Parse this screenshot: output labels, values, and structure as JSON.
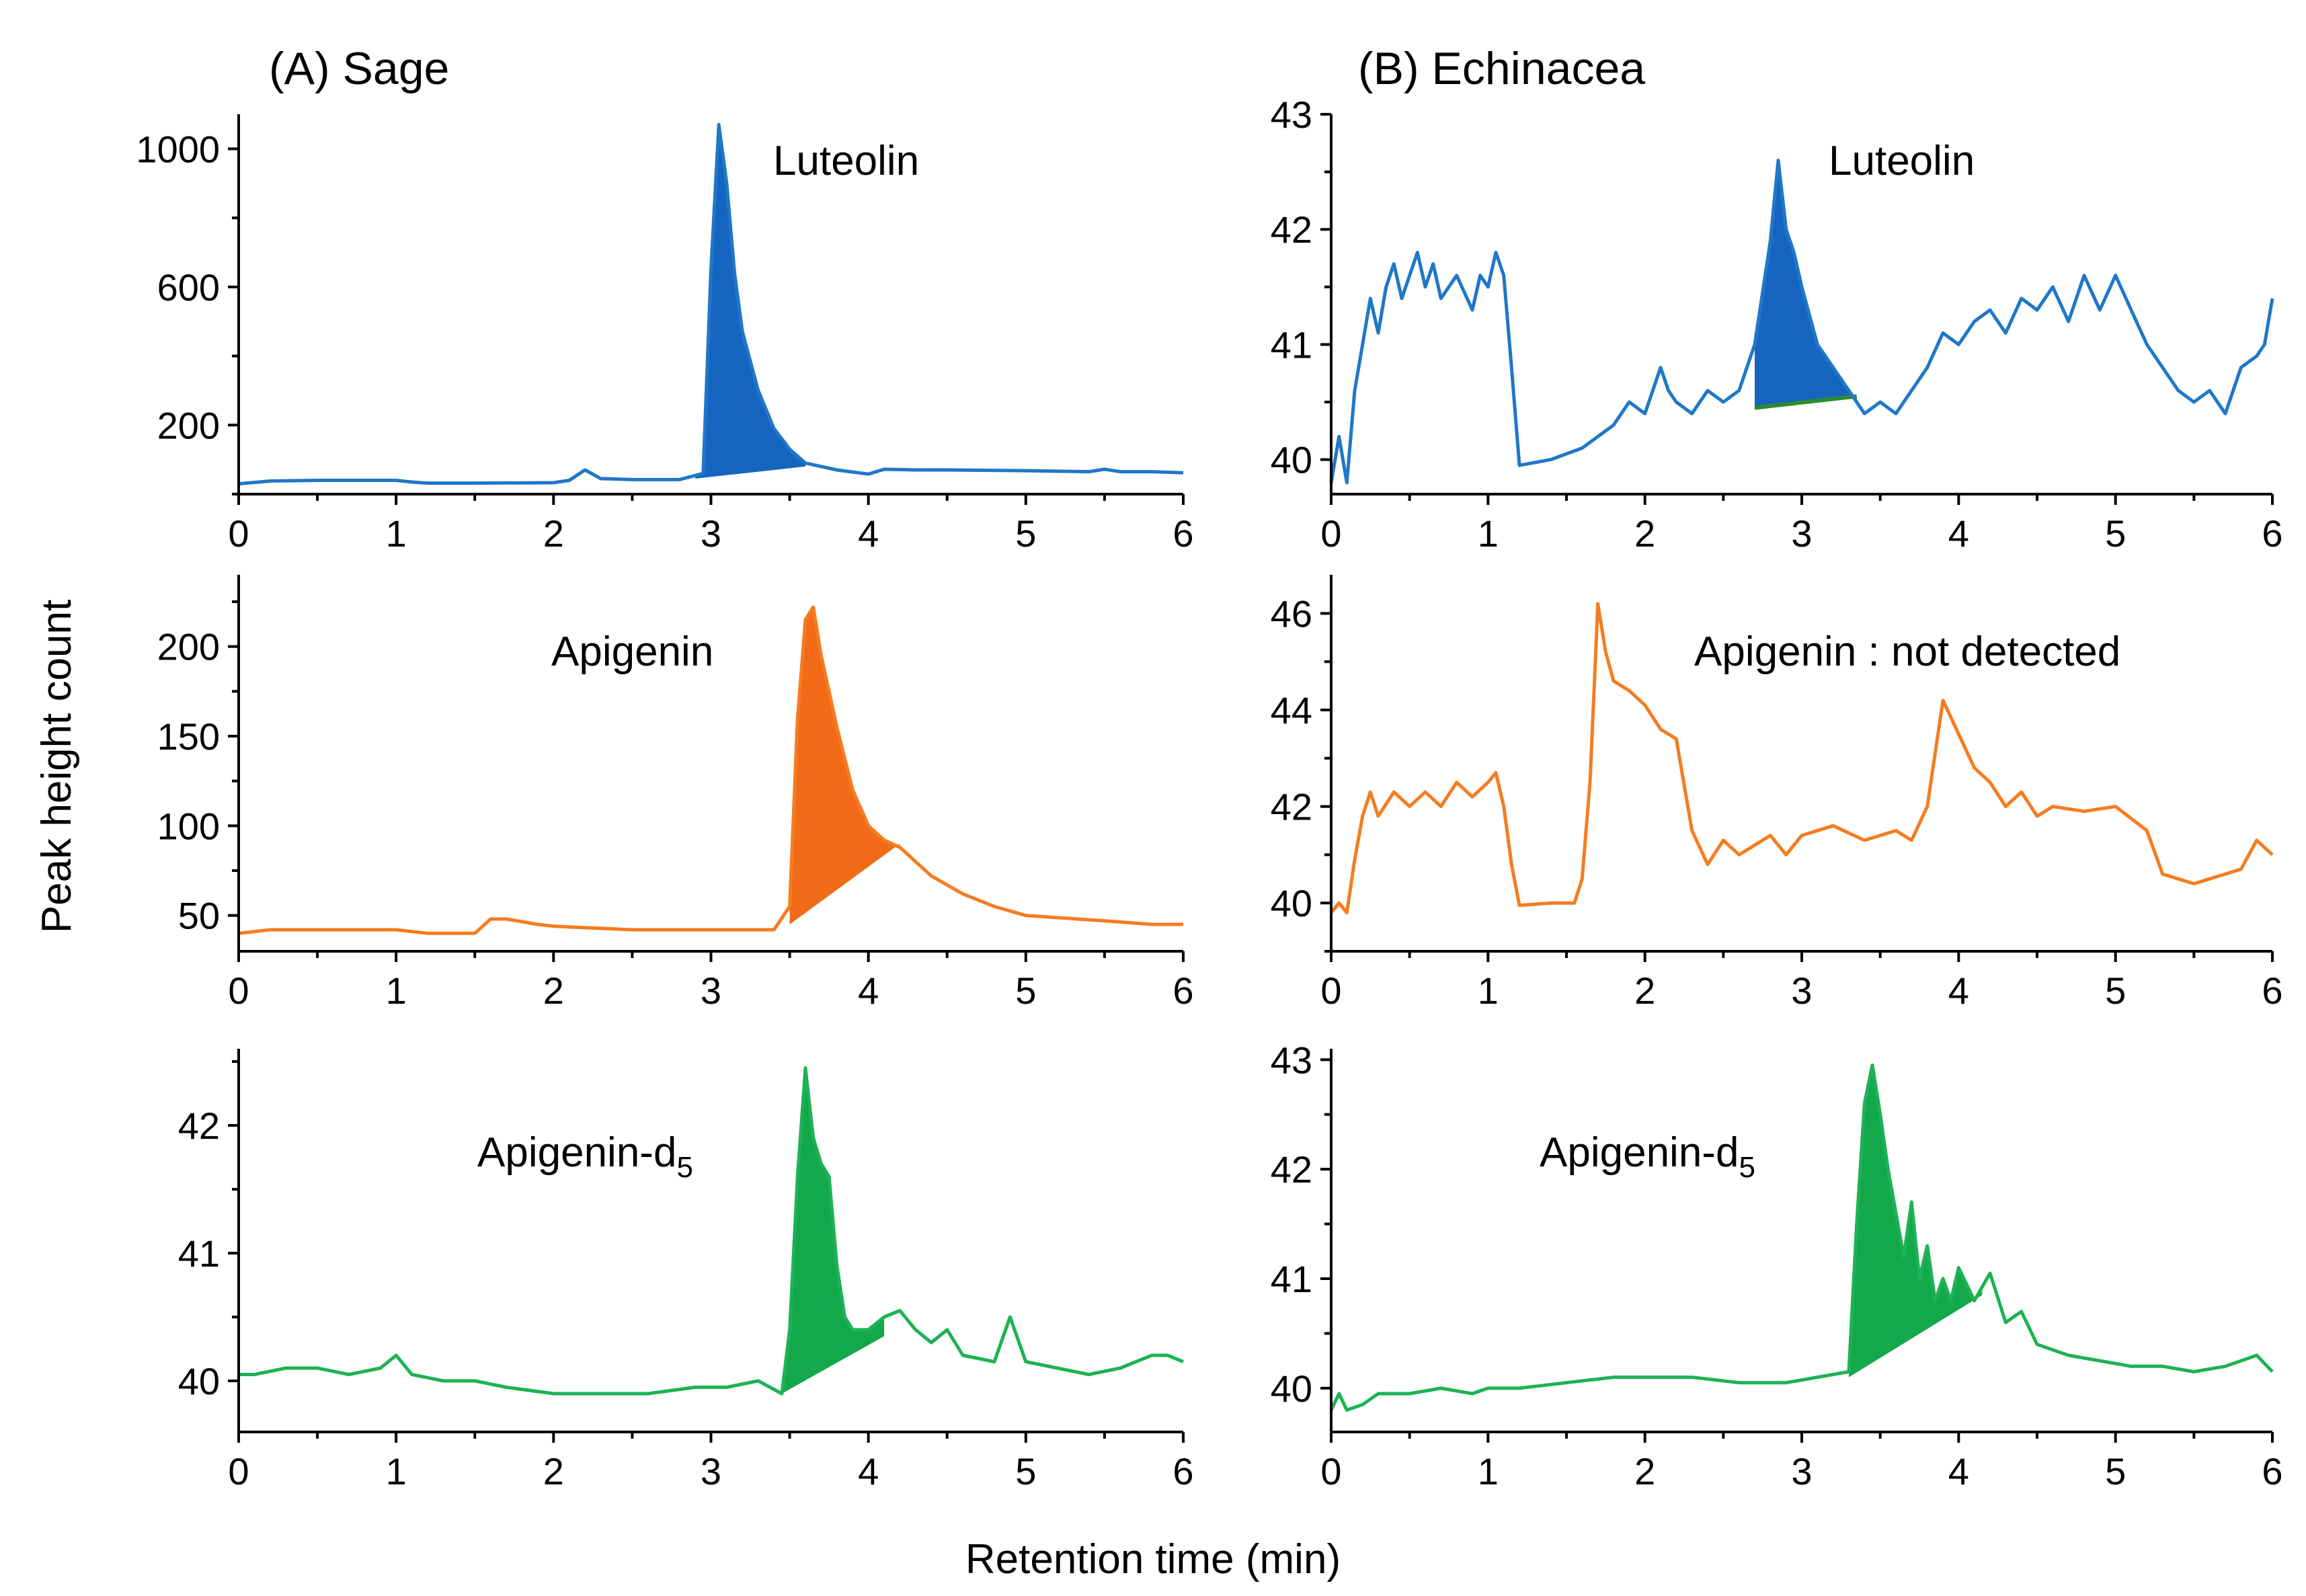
{
  "figure": {
    "x_axis_title": "Retention time (min)",
    "y_axis_title": "Peak height count"
  },
  "chart_data": [
    {
      "id": "sage-luteolin",
      "type": "line",
      "column_title": "(A) Sage",
      "label": "Luteolin",
      "color": "#1f77c8",
      "fill_color": "#1565c0",
      "xlim": [
        0,
        6
      ],
      "x_ticks": [
        0,
        1,
        2,
        3,
        4,
        5,
        6
      ],
      "ylim": [
        0,
        1100
      ],
      "y_ticks": [
        200,
        600,
        1000
      ],
      "peak_shade": {
        "start": 2.9,
        "end": 3.6,
        "baseline": [
          45,
          80
        ]
      },
      "x": [
        0,
        0.2,
        0.5,
        1.0,
        1.1,
        1.2,
        1.5,
        2.0,
        2.1,
        2.2,
        2.3,
        2.5,
        2.8,
        2.95,
        3.0,
        3.05,
        3.1,
        3.15,
        3.2,
        3.3,
        3.4,
        3.5,
        3.6,
        3.8,
        4.0,
        4.1,
        4.3,
        4.5,
        5.0,
        5.4,
        5.5,
        5.6,
        5.8,
        6.0
      ],
      "y": [
        30,
        38,
        40,
        40,
        35,
        32,
        32,
        33,
        40,
        70,
        45,
        42,
        42,
        60,
        650,
        1070,
        900,
        640,
        470,
        300,
        190,
        130,
        90,
        70,
        58,
        72,
        70,
        70,
        68,
        65,
        72,
        65,
        65,
        62
      ]
    },
    {
      "id": "echinacea-luteolin",
      "type": "line",
      "column_title": "(B) Echinacea",
      "label": "Luteolin",
      "color": "#1f77c8",
      "fill_color": "#1565c0",
      "baseline_color": "#2e8b2e",
      "xlim": [
        0,
        6
      ],
      "x_ticks": [
        0,
        1,
        2,
        3,
        4,
        5,
        6
      ],
      "ylim": [
        39.7,
        43
      ],
      "y_ticks": [
        40,
        41,
        42,
        43
      ],
      "peak_shade": {
        "start": 2.7,
        "end": 3.35,
        "baseline": [
          40.45,
          40.55
        ]
      },
      "x": [
        0,
        0.05,
        0.1,
        0.15,
        0.2,
        0.25,
        0.3,
        0.35,
        0.4,
        0.45,
        0.5,
        0.55,
        0.6,
        0.65,
        0.7,
        0.8,
        0.9,
        0.95,
        1.0,
        1.05,
        1.1,
        1.15,
        1.2,
        1.4,
        1.6,
        1.8,
        1.9,
        2.0,
        2.1,
        2.15,
        2.2,
        2.3,
        2.4,
        2.5,
        2.6,
        2.7,
        2.8,
        2.85,
        2.9,
        2.95,
        3.0,
        3.1,
        3.2,
        3.3,
        3.4,
        3.5,
        3.6,
        3.7,
        3.8,
        3.9,
        4.0,
        4.1,
        4.2,
        4.3,
        4.4,
        4.5,
        4.6,
        4.7,
        4.8,
        4.9,
        5.0,
        5.1,
        5.2,
        5.3,
        5.4,
        5.5,
        5.6,
        5.7,
        5.8,
        5.9,
        5.95,
        6.0
      ],
      "y": [
        39.8,
        40.2,
        39.8,
        40.6,
        41.0,
        41.4,
        41.1,
        41.5,
        41.7,
        41.4,
        41.6,
        41.8,
        41.5,
        41.7,
        41.4,
        41.6,
        41.3,
        41.6,
        41.5,
        41.8,
        41.6,
        40.8,
        39.95,
        40.0,
        40.1,
        40.3,
        40.5,
        40.4,
        40.8,
        40.6,
        40.5,
        40.4,
        40.6,
        40.5,
        40.6,
        41.0,
        41.9,
        42.6,
        42.0,
        41.8,
        41.5,
        41.0,
        40.8,
        40.6,
        40.4,
        40.5,
        40.4,
        40.6,
        40.8,
        41.1,
        41.0,
        41.2,
        41.3,
        41.1,
        41.4,
        41.3,
        41.5,
        41.2,
        41.6,
        41.3,
        41.6,
        41.3,
        41.0,
        40.8,
        40.6,
        40.5,
        40.6,
        40.4,
        40.8,
        40.9,
        41.0,
        41.4
      ]
    },
    {
      "id": "sage-apigenin",
      "type": "line",
      "label": "Apigenin",
      "color": "#f57c20",
      "fill_color": "#f26b18",
      "xlim": [
        0,
        6
      ],
      "x_ticks": [
        0,
        1,
        2,
        3,
        4,
        5,
        6
      ],
      "ylim": [
        30,
        240
      ],
      "y_ticks": [
        50,
        100,
        150,
        200
      ],
      "peak_shade": {
        "start": 3.5,
        "end": 4.2,
        "baseline": [
          45,
          90
        ]
      },
      "x": [
        0,
        0.2,
        0.5,
        1.0,
        1.2,
        1.5,
        1.6,
        1.7,
        1.9,
        2.0,
        2.5,
        3.0,
        3.4,
        3.5,
        3.55,
        3.6,
        3.65,
        3.7,
        3.8,
        3.9,
        4.0,
        4.1,
        4.2,
        4.3,
        4.4,
        4.6,
        4.8,
        5.0,
        5.5,
        5.8,
        6.0
      ],
      "y": [
        40,
        42,
        42,
        42,
        40,
        40,
        48,
        48,
        45,
        44,
        42,
        42,
        42,
        55,
        160,
        215,
        222,
        195,
        155,
        120,
        100,
        92,
        88,
        80,
        72,
        62,
        55,
        50,
        47,
        45,
        45
      ]
    },
    {
      "id": "echinacea-apigenin",
      "type": "line",
      "label": "Apigenin : not detected",
      "color": "#f57c20",
      "xlim": [
        0,
        6
      ],
      "x_ticks": [
        0,
        1,
        2,
        3,
        4,
        5,
        6
      ],
      "ylim": [
        39,
        46.8
      ],
      "y_ticks": [
        40,
        42,
        44,
        46
      ],
      "x": [
        0,
        0.05,
        0.1,
        0.15,
        0.2,
        0.25,
        0.3,
        0.4,
        0.5,
        0.6,
        0.7,
        0.8,
        0.9,
        1.0,
        1.05,
        1.1,
        1.15,
        1.2,
        1.4,
        1.55,
        1.6,
        1.65,
        1.7,
        1.75,
        1.8,
        1.9,
        2.0,
        2.1,
        2.2,
        2.3,
        2.4,
        2.5,
        2.6,
        2.7,
        2.8,
        2.9,
        3.0,
        3.2,
        3.4,
        3.6,
        3.7,
        3.8,
        3.9,
        4.0,
        4.1,
        4.2,
        4.3,
        4.4,
        4.5,
        4.6,
        4.8,
        5.0,
        5.2,
        5.3,
        5.4,
        5.5,
        5.6,
        5.8,
        5.9,
        6.0
      ],
      "y": [
        39.8,
        40.0,
        39.8,
        40.9,
        41.8,
        42.3,
        41.8,
        42.3,
        42.0,
        42.3,
        42.0,
        42.5,
        42.2,
        42.5,
        42.7,
        42.0,
        40.8,
        39.95,
        40.0,
        40.0,
        40.5,
        42.5,
        46.2,
        45.2,
        44.6,
        44.4,
        44.1,
        43.6,
        43.4,
        41.5,
        40.8,
        41.3,
        41.0,
        41.2,
        41.4,
        41.0,
        41.4,
        41.6,
        41.3,
        41.5,
        41.3,
        42.0,
        44.2,
        43.5,
        42.8,
        42.5,
        42.0,
        42.3,
        41.8,
        42.0,
        41.9,
        42.0,
        41.5,
        40.6,
        40.5,
        40.4,
        40.5,
        40.7,
        41.3,
        41.0
      ]
    },
    {
      "id": "sage-apigenin-d5",
      "type": "line",
      "label": "Apigenin-d",
      "label_subscript": "5",
      "color": "#1db254",
      "fill_color": "#13a84a",
      "xlim": [
        0,
        6
      ],
      "x_ticks": [
        0,
        1,
        2,
        3,
        4,
        5,
        6
      ],
      "ylim": [
        39.6,
        42.6
      ],
      "y_ticks": [
        40,
        41,
        42
      ],
      "peak_shade": {
        "start": 3.45,
        "end": 4.1,
        "baseline": [
          39.9,
          40.35
        ]
      },
      "x": [
        0,
        0.1,
        0.3,
        0.5,
        0.7,
        0.9,
        1.0,
        1.1,
        1.3,
        1.5,
        1.7,
        2.0,
        2.3,
        2.6,
        2.9,
        3.1,
        3.3,
        3.45,
        3.5,
        3.55,
        3.6,
        3.65,
        3.7,
        3.75,
        3.8,
        3.85,
        3.9,
        4.0,
        4.1,
        4.2,
        4.3,
        4.4,
        4.5,
        4.6,
        4.8,
        4.9,
        5.0,
        5.2,
        5.4,
        5.6,
        5.8,
        5.9,
        6.0
      ],
      "y": [
        40.05,
        40.05,
        40.1,
        40.1,
        40.05,
        40.1,
        40.2,
        40.05,
        40.0,
        40.0,
        39.95,
        39.9,
        39.9,
        39.9,
        39.95,
        39.95,
        40.0,
        39.9,
        40.4,
        41.6,
        42.45,
        41.9,
        41.7,
        41.6,
        40.9,
        40.5,
        40.4,
        40.4,
        40.5,
        40.55,
        40.4,
        40.3,
        40.4,
        40.2,
        40.15,
        40.5,
        40.15,
        40.1,
        40.05,
        40.1,
        40.2,
        40.2,
        40.15
      ]
    },
    {
      "id": "echinacea-apigenin-d5",
      "type": "line",
      "label": "Apigenin-d",
      "label_subscript": "5",
      "color": "#1db254",
      "fill_color": "#13a84a",
      "xlim": [
        0,
        6
      ],
      "x_ticks": [
        0,
        1,
        2,
        3,
        4,
        5,
        6
      ],
      "ylim": [
        39.6,
        43.1
      ],
      "y_ticks": [
        40,
        41,
        42,
        43
      ],
      "peak_shade": {
        "start": 3.3,
        "end": 4.15,
        "baseline": [
          40.1,
          40.85
        ]
      },
      "x": [
        0,
        0.05,
        0.1,
        0.2,
        0.3,
        0.5,
        0.7,
        0.9,
        1.0,
        1.2,
        1.5,
        1.8,
        2.0,
        2.3,
        2.6,
        2.9,
        3.1,
        3.3,
        3.35,
        3.4,
        3.45,
        3.5,
        3.55,
        3.6,
        3.65,
        3.7,
        3.75,
        3.8,
        3.85,
        3.9,
        3.95,
        4.0,
        4.1,
        4.2,
        4.3,
        4.4,
        4.5,
        4.7,
        4.9,
        5.1,
        5.3,
        5.5,
        5.7,
        5.9,
        6.0
      ],
      "y": [
        39.8,
        39.95,
        39.8,
        39.85,
        39.95,
        39.95,
        40.0,
        39.95,
        40.0,
        40.0,
        40.05,
        40.1,
        40.1,
        40.1,
        40.05,
        40.05,
        40.1,
        40.15,
        41.5,
        42.6,
        42.95,
        42.5,
        42.0,
        41.6,
        41.2,
        41.7,
        41.0,
        41.3,
        40.8,
        41.0,
        40.8,
        41.1,
        40.8,
        41.05,
        40.6,
        40.7,
        40.4,
        40.3,
        40.25,
        40.2,
        40.2,
        40.15,
        40.2,
        40.3,
        40.15
      ]
    }
  ]
}
